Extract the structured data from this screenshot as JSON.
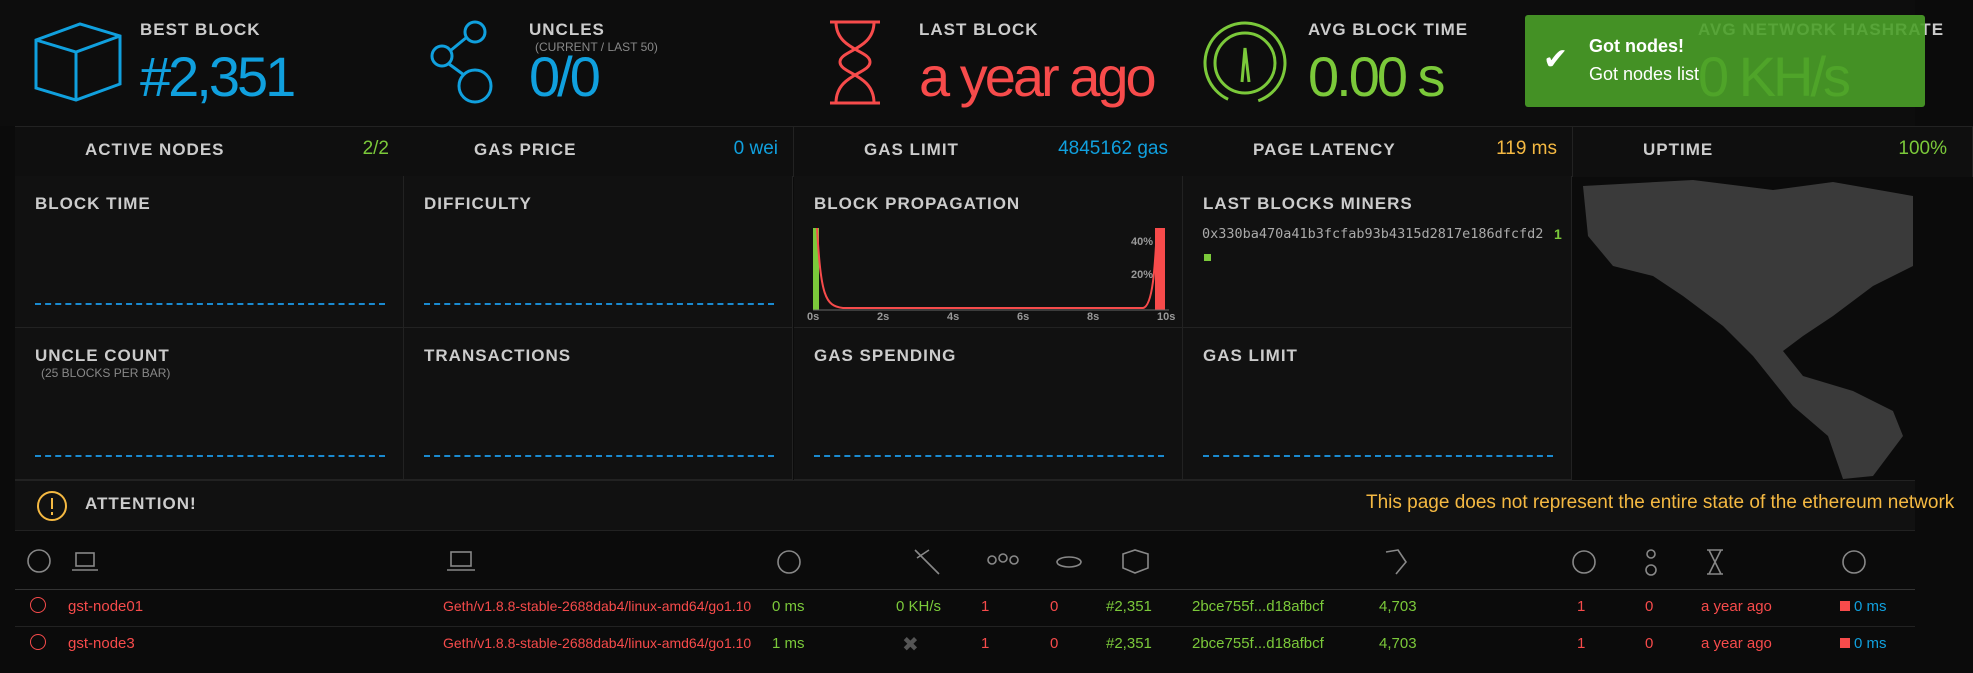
{
  "header_stats": [
    {
      "label": "BEST BLOCK",
      "value": "#2,351"
    },
    {
      "label": "UNCLES",
      "sublabel": "(CURRENT / LAST 50)",
      "value": "0/0"
    },
    {
      "label": "LAST BLOCK",
      "value": "a year ago"
    },
    {
      "label": "AVG BLOCK TIME",
      "value": "0.00 s"
    },
    {
      "label": "AVG NETWORK HASHRATE",
      "value": "0 KH/s"
    }
  ],
  "small_stats": [
    {
      "label": "ACTIVE NODES",
      "value": "2/2"
    },
    {
      "label": "GAS PRICE",
      "value": "0 wei"
    },
    {
      "label": "GAS LIMIT",
      "value": "4845162 gas"
    },
    {
      "label": "PAGE LATENCY",
      "value": "119 ms"
    },
    {
      "label": "UPTIME",
      "value": "100%"
    }
  ],
  "charts": [
    {
      "label": "BLOCK TIME"
    },
    {
      "label": "DIFFICULTY"
    },
    {
      "label": "BLOCK PROPAGATION",
      "x_labels": [
        "0s",
        "2s",
        "4s",
        "6s",
        "8s",
        "10s"
      ],
      "y_labels": [
        "40%",
        "20%"
      ]
    },
    {
      "label": "LAST BLOCKS MINERS",
      "miner": "0x330ba470a41b3fcfab93b4315d2817e186dfcfd2",
      "count": "1"
    },
    {
      "label": "UNCLE COUNT",
      "sublabel": "(25 BLOCKS PER BAR)"
    },
    {
      "label": "TRANSACTIONS"
    },
    {
      "label": "GAS SPENDING"
    },
    {
      "label": "GAS LIMIT"
    }
  ],
  "attention": {
    "label": "ATTENTION!",
    "message": "This page does not represent the entire state of the ethereum network"
  },
  "toast": {
    "title": "Got nodes!",
    "message": "Got nodes list"
  },
  "table": {
    "rows": [
      [
        "gst-node01",
        "Geth/v1.8.8-stable-2688dab4/linux-amd64/go1.10",
        "0 ms",
        "0 KH/s",
        "1",
        "0",
        "#2,351",
        "2bce755f...d18afbcf",
        "4,703",
        "1",
        "0",
        "a year ago",
        "0 ms"
      ],
      [
        "gst-node3",
        "Geth/v1.8.8-stable-2688dab4/linux-amd64/go1.10",
        "1 ms",
        null,
        "1",
        "0",
        "#2,351",
        "2bce755f...d18afbcf",
        "4,703",
        "1",
        "0",
        "a year ago",
        "0 ms"
      ]
    ]
  }
}
